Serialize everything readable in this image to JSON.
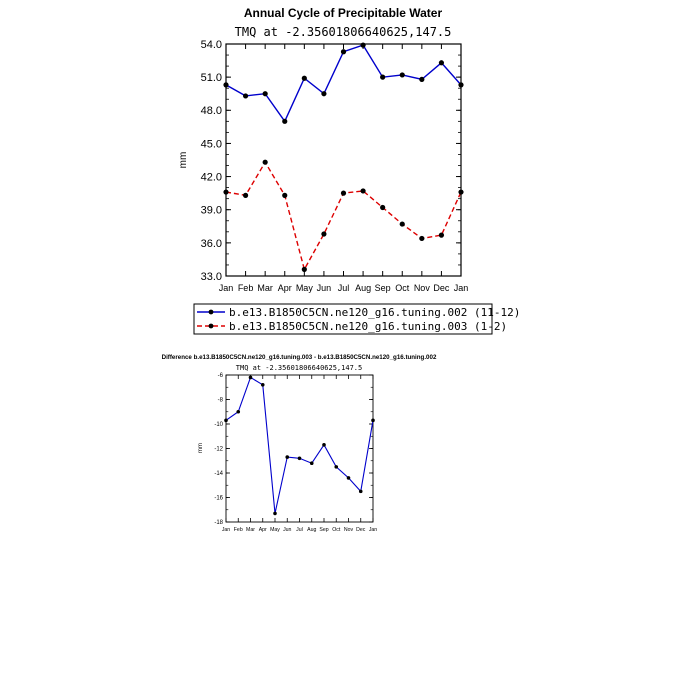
{
  "chart_data": [
    {
      "type": "line",
      "title": "Annual Cycle of Precipitable Water",
      "subtitle": "TMQ at -2.35601806640625,147.5",
      "ylabel": "mm",
      "xlabel": "",
      "categories": [
        "Jan",
        "Feb",
        "Mar",
        "Apr",
        "May",
        "Jun",
        "Jul",
        "Aug",
        "Sep",
        "Oct",
        "Nov",
        "Dec",
        "Jan"
      ],
      "ylim": [
        33.0,
        54.0
      ],
      "yticks": [
        "54.0",
        "51.0",
        "48.0",
        "45.0",
        "42.0",
        "39.0",
        "36.0",
        "33.0"
      ],
      "legend_position": "bottom",
      "series": [
        {
          "name": "b.e13.B1850C5CN.ne120_g16.tuning.002 (11-12)",
          "color": "#0000cc",
          "dash": "solid",
          "values": [
            50.3,
            49.3,
            49.5,
            47.0,
            50.9,
            49.5,
            53.3,
            53.9,
            51.0,
            51.2,
            50.8,
            52.3,
            50.3
          ]
        },
        {
          "name": "b.e13.B1850C5CN.ne120_g16.tuning.003 (1-2)",
          "color": "#dd0000",
          "dash": "dashed",
          "values": [
            40.6,
            40.3,
            43.3,
            40.3,
            33.6,
            36.8,
            40.5,
            40.7,
            39.2,
            37.7,
            36.4,
            36.7,
            40.6
          ]
        }
      ]
    },
    {
      "type": "line",
      "title": "Difference b.e13.B1850C5CN.ne120_g16.tuning.003 - b.e13.B1850C5CN.ne120_g16.tuning.002",
      "subtitle": "TMQ at -2.35601806640625,147.5",
      "ylabel": "mm",
      "xlabel": "",
      "categories": [
        "Jan",
        "Feb",
        "Mar",
        "Apr",
        "May",
        "Jun",
        "Jul",
        "Aug",
        "Sep",
        "Oct",
        "Nov",
        "Dec",
        "Jan"
      ],
      "ylim": [
        -18,
        -6
      ],
      "yticks": [
        "-6",
        "-8",
        "-10",
        "-12",
        "-14",
        "-16",
        "-18"
      ],
      "series": [
        {
          "color": "#0000cc",
          "values": [
            -9.7,
            -9.0,
            -6.2,
            -6.8,
            -17.3,
            -12.7,
            -12.8,
            -13.2,
            -11.7,
            -13.5,
            -14.4,
            -15.5,
            -9.7
          ]
        }
      ]
    }
  ]
}
